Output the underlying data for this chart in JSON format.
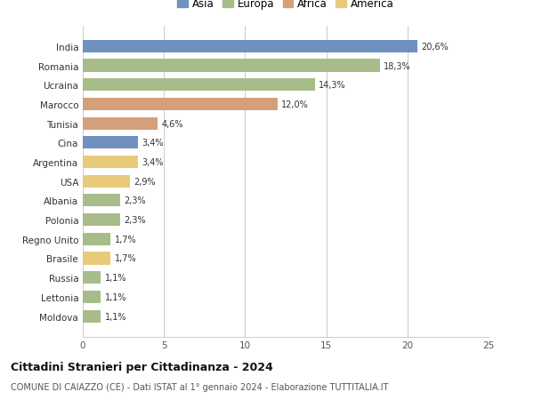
{
  "countries": [
    "India",
    "Romania",
    "Ucraina",
    "Marocco",
    "Tunisia",
    "Cina",
    "Argentina",
    "USA",
    "Albania",
    "Polonia",
    "Regno Unito",
    "Brasile",
    "Russia",
    "Lettonia",
    "Moldova"
  ],
  "values": [
    20.6,
    18.3,
    14.3,
    12.0,
    4.6,
    3.4,
    3.4,
    2.9,
    2.3,
    2.3,
    1.7,
    1.7,
    1.1,
    1.1,
    1.1
  ],
  "labels": [
    "20,6%",
    "18,3%",
    "14,3%",
    "12,0%",
    "4,6%",
    "3,4%",
    "3,4%",
    "2,9%",
    "2,3%",
    "2,3%",
    "1,7%",
    "1,7%",
    "1,1%",
    "1,1%",
    "1,1%"
  ],
  "continents": [
    "Asia",
    "Europa",
    "Europa",
    "Africa",
    "Africa",
    "Asia",
    "America",
    "America",
    "Europa",
    "Europa",
    "Europa",
    "America",
    "Europa",
    "Europa",
    "Europa"
  ],
  "colors": {
    "Asia": "#7090c0",
    "Europa": "#a8bc8a",
    "Africa": "#d4a07a",
    "America": "#e8ca7a"
  },
  "legend_order": [
    "Asia",
    "Europa",
    "Africa",
    "America"
  ],
  "title": "Cittadini Stranieri per Cittadinanza - 2024",
  "subtitle": "COMUNE DI CAIAZZO (CE) - Dati ISTAT al 1° gennaio 2024 - Elaborazione TUTTITALIA.IT",
  "xlim": [
    0,
    25
  ],
  "xticks": [
    0,
    5,
    10,
    15,
    20,
    25
  ],
  "background_color": "#ffffff",
  "grid_color": "#cccccc"
}
